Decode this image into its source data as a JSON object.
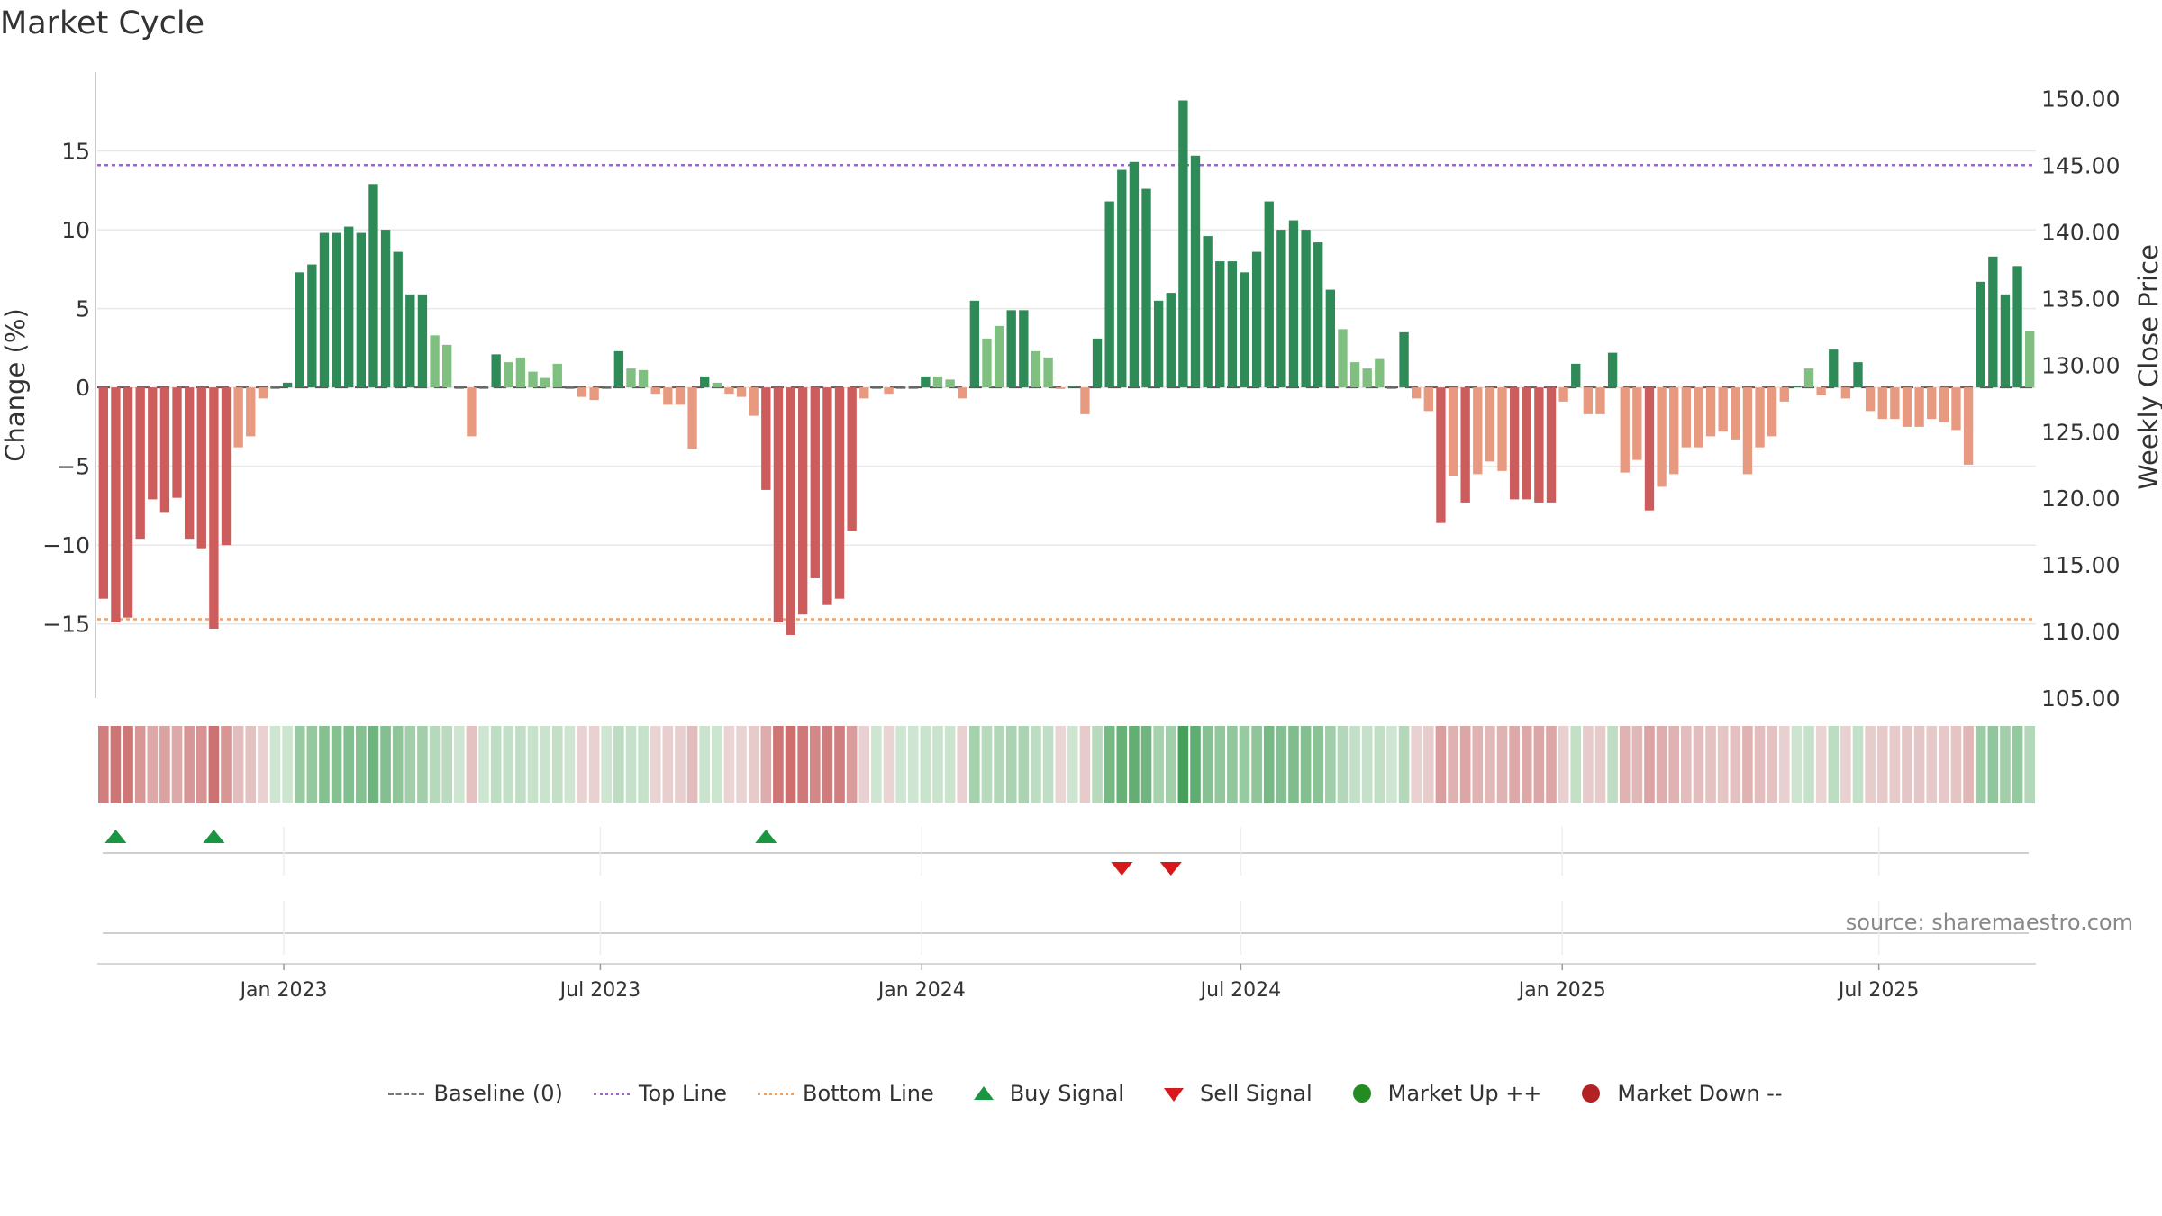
{
  "title": "Market Cycle",
  "source": "source: sharemaestro.com",
  "colors": {
    "up_strong": "#2e8b57",
    "up_weak": "#7fbf7f",
    "down_strong": "#cd5c5c",
    "down_weak": "#e89a80",
    "top_line": "#9966cc",
    "bottom_line": "#f0a060",
    "buy": "#1a9641",
    "sell": "#d7191c",
    "market_up": "#228b22",
    "market_down": "#b22222"
  },
  "legend": {
    "baseline": "Baseline (0)",
    "top": "Top Line",
    "bottom": "Bottom Line",
    "buy": "Buy Signal",
    "sell": "Sell Signal",
    "up": "Market Up ++",
    "down": "Market Down --"
  },
  "chart_data": {
    "type": "bar",
    "ylabel": "Change (%)",
    "y2label": "Weekly Close Price",
    "ylim": [
      -19.7,
      20
    ],
    "y2lim": [
      105,
      152
    ],
    "yticks": [
      15,
      10,
      5,
      0,
      -5,
      -10,
      -15
    ],
    "ytick_labels": [
      "15",
      "10",
      "5",
      "0",
      "−5",
      "−10",
      "−15"
    ],
    "y2ticks": [
      150,
      145,
      140,
      135,
      130,
      125,
      120,
      115,
      110,
      105
    ],
    "y2tick_labels": [
      "150.00",
      "145.00",
      "140.00",
      "135.00",
      "130.00",
      "125.00",
      "120.00",
      "115.00",
      "110.00",
      "105.00"
    ],
    "xtick_labels": [
      "Jan 2023",
      "Jul 2023",
      "Jan 2024",
      "Jul 2024",
      "Jan 2025",
      "Jul 2025"
    ],
    "xtick_weeks": [
      14.7,
      40.5,
      66.7,
      92.7,
      118.9,
      144.7
    ],
    "top_line": 14.1,
    "bottom_line": -14.7,
    "values": [
      -13.4,
      -14.9,
      -14.6,
      -9.6,
      -7.1,
      -7.9,
      -7.0,
      -9.6,
      -10.2,
      -15.3,
      -10.0,
      -3.8,
      -3.1,
      -0.7,
      0,
      0.3,
      7.3,
      7.8,
      9.8,
      9.8,
      10.2,
      9.8,
      12.9,
      10.0,
      8.6,
      5.9,
      5.9,
      3.3,
      2.7,
      0,
      -3.1,
      0,
      2.1,
      1.6,
      1.9,
      1.0,
      0.6,
      1.5,
      0,
      -0.6,
      -0.8,
      0,
      2.3,
      1.2,
      1.1,
      -0.4,
      -1.1,
      -1.1,
      -3.9,
      0.7,
      0.3,
      -0.4,
      -0.6,
      -1.8,
      -6.5,
      -14.9,
      -15.7,
      -14.4,
      -12.1,
      -13.8,
      -13.4,
      -9.1,
      -0.7,
      0,
      -0.4,
      0,
      0,
      0.7,
      0.7,
      0.5,
      -0.7,
      5.5,
      3.1,
      3.9,
      4.9,
      4.9,
      2.3,
      1.9,
      -0.1,
      0.1,
      -1.7,
      3.1,
      11.8,
      13.8,
      14.3,
      12.6,
      5.5,
      6.0,
      18.2,
      14.7,
      9.6,
      8.0,
      8.0,
      7.3,
      8.6,
      11.8,
      10.0,
      10.6,
      10.0,
      9.2,
      6.2,
      3.7,
      1.6,
      1.2,
      1.8,
      0,
      3.5,
      -0.7,
      -1.5,
      -8.6,
      -5.6,
      -7.3,
      -5.5,
      -4.7,
      -5.3,
      -7.1,
      -7.1,
      -7.3,
      -7.3,
      -0.9,
      1.5,
      -1.7,
      -1.7,
      2.2,
      -5.4,
      -4.6,
      -7.8,
      -6.3,
      -5.5,
      -3.8,
      -3.8,
      -3.1,
      -2.8,
      -3.3,
      -5.5,
      -3.8,
      -3.1,
      -0.9,
      0.1,
      1.2,
      -0.5,
      2.4,
      -0.7,
      1.6,
      -1.5,
      -2.0,
      -2.0,
      -2.5,
      -2.5,
      -2.0,
      -2.2,
      -2.7,
      -4.9,
      6.7,
      8.3,
      5.9,
      7.7,
      3.6
    ],
    "buy_signals": [
      1,
      9,
      54
    ],
    "sell_signals": [
      83,
      87
    ]
  }
}
